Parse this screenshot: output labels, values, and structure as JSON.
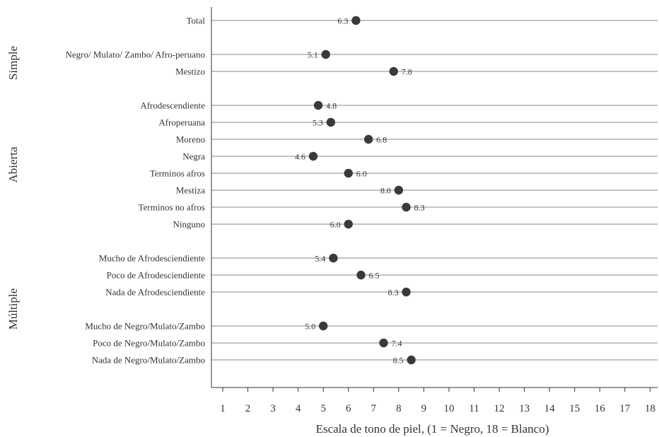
{
  "chart_data": {
    "type": "dot",
    "xlabel": "Escala de tono de piel, (1 = Negro, 18 = Blanco)",
    "xlim": [
      0.55,
      18.3
    ],
    "x_ticks": [
      "1",
      "2",
      "3",
      "4",
      "5",
      "6",
      "7",
      "8",
      "9",
      "10",
      "11",
      "12",
      "13",
      "14",
      "15",
      "16",
      "17",
      "18"
    ],
    "rows": [
      {
        "label": "Total",
        "value": 6.3,
        "value_label": "6.3",
        "label_side": "left"
      },
      {
        "label": "Negro/ Mulato/ Zambo/ Afro-peruano",
        "value": 5.1,
        "value_label": "5.1",
        "label_side": "left"
      },
      {
        "label": "Mestizo",
        "value": 7.8,
        "value_label": "7.8",
        "label_side": "right"
      },
      {
        "label": "Afrodescendiente",
        "value": 4.8,
        "value_label": "4.8",
        "label_side": "right"
      },
      {
        "label": "Afroperuana",
        "value": 5.3,
        "value_label": "5.3",
        "label_side": "left"
      },
      {
        "label": "Moreno",
        "value": 6.8,
        "value_label": "6.8",
        "label_side": "right"
      },
      {
        "label": "Negra",
        "value": 4.6,
        "value_label": "4.6",
        "label_side": "left"
      },
      {
        "label": "Terminos afros",
        "value": 6.0,
        "value_label": "6.0",
        "label_side": "right"
      },
      {
        "label": "Mestiza",
        "value": 8.0,
        "value_label": "8.0",
        "label_side": "left"
      },
      {
        "label": "Terminos no afros",
        "value": 8.3,
        "value_label": "8.3",
        "label_side": "right"
      },
      {
        "label": "Ninguno",
        "value": 6.0,
        "value_label": "6.0",
        "label_side": "left"
      },
      {
        "label": "Mucho de Afrodesciendiente",
        "value": 5.4,
        "value_label": "5.4",
        "label_side": "left"
      },
      {
        "label": "Poco de Afrodesciendiente",
        "value": 6.5,
        "value_label": "6.5",
        "label_side": "right"
      },
      {
        "label": "Nada de Afrodesciendiente",
        "value": 8.3,
        "value_label": "8.3",
        "label_side": "left"
      },
      {
        "label": "Mucho de Negro/Mulato/Zambo",
        "value": 5.0,
        "value_label": "5.0",
        "label_side": "left"
      },
      {
        "label": "Poco de Negro/Mulato/Zambo",
        "value": 7.4,
        "value_label": "7.4",
        "label_side": "right"
      },
      {
        "label": "Nada de Negro/Mulato/Zambo",
        "value": 8.5,
        "value_label": "8.5",
        "label_side": "left"
      }
    ],
    "groups": [
      {
        "name": "Simple",
        "first_row": 1,
        "last_row": 2
      },
      {
        "name": "Abierta",
        "first_row": 3,
        "last_row": 10
      },
      {
        "name": "Múltiple",
        "first_row": 11,
        "last_row": 16
      }
    ],
    "grid": false,
    "legend": "none"
  }
}
